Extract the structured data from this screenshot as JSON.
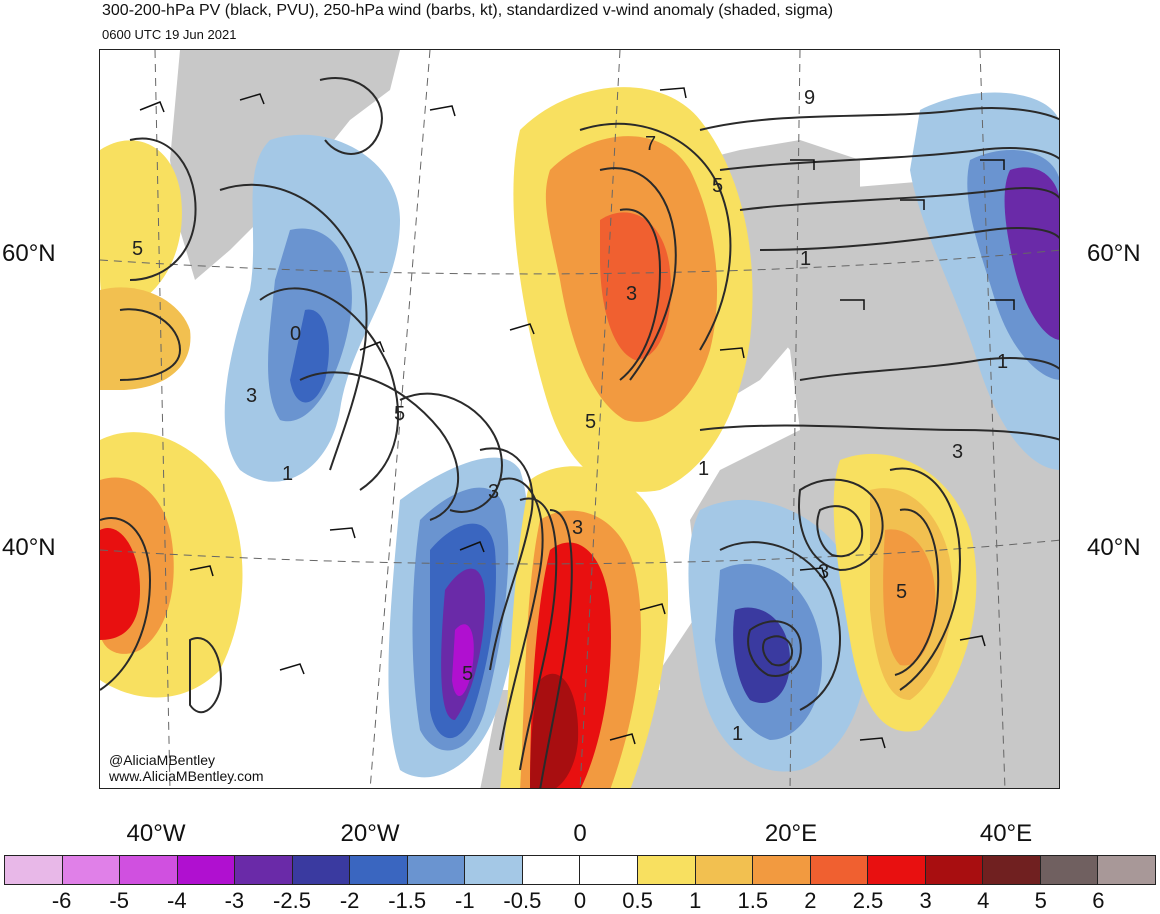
{
  "title": {
    "line1": "300-200-hPa PV (black, PVU), 250-hPa wind (barbs, kt), standardized v-wind anomaly (shaded, sigma)",
    "line2": "0600 UTC 19 Jun 2021"
  },
  "axes": {
    "latitude_labels": [
      "60°N",
      "40°N"
    ],
    "longitude_labels": [
      "40°W",
      "20°W",
      "0",
      "20°E",
      "40°E"
    ]
  },
  "contour_labels": [
    "5",
    "0",
    "3",
    "5",
    "1",
    "3",
    "7",
    "5",
    "3",
    "5",
    "3",
    "1",
    "9",
    "1",
    "3",
    "1",
    "3",
    "5",
    "5",
    "1"
  ],
  "credits": {
    "handle": "@AliciaMBentley",
    "website": "www.AliciaMBentley.com"
  },
  "colorbar": {
    "colors": [
      "#e8b8e8",
      "#e080e8",
      "#d050e0",
      "#b010d0",
      "#6a2aa8",
      "#3a3aa0",
      "#3a66c0",
      "#6a94d0",
      "#a4c8e6",
      "#ffffff",
      "#ffffff",
      "#f8e060",
      "#f2c050",
      "#f29a40",
      "#f06030",
      "#e81010",
      "#a80e10",
      "#702020",
      "#706060",
      "#a89898"
    ],
    "tick_labels": [
      "-6",
      "-5",
      "-4",
      "-3",
      "-2.5",
      "-2",
      "-1.5",
      "-1",
      "-0.5",
      "0",
      "0.5",
      "1",
      "1.5",
      "2",
      "2.5",
      "3",
      "4",
      "5",
      "6"
    ]
  }
}
